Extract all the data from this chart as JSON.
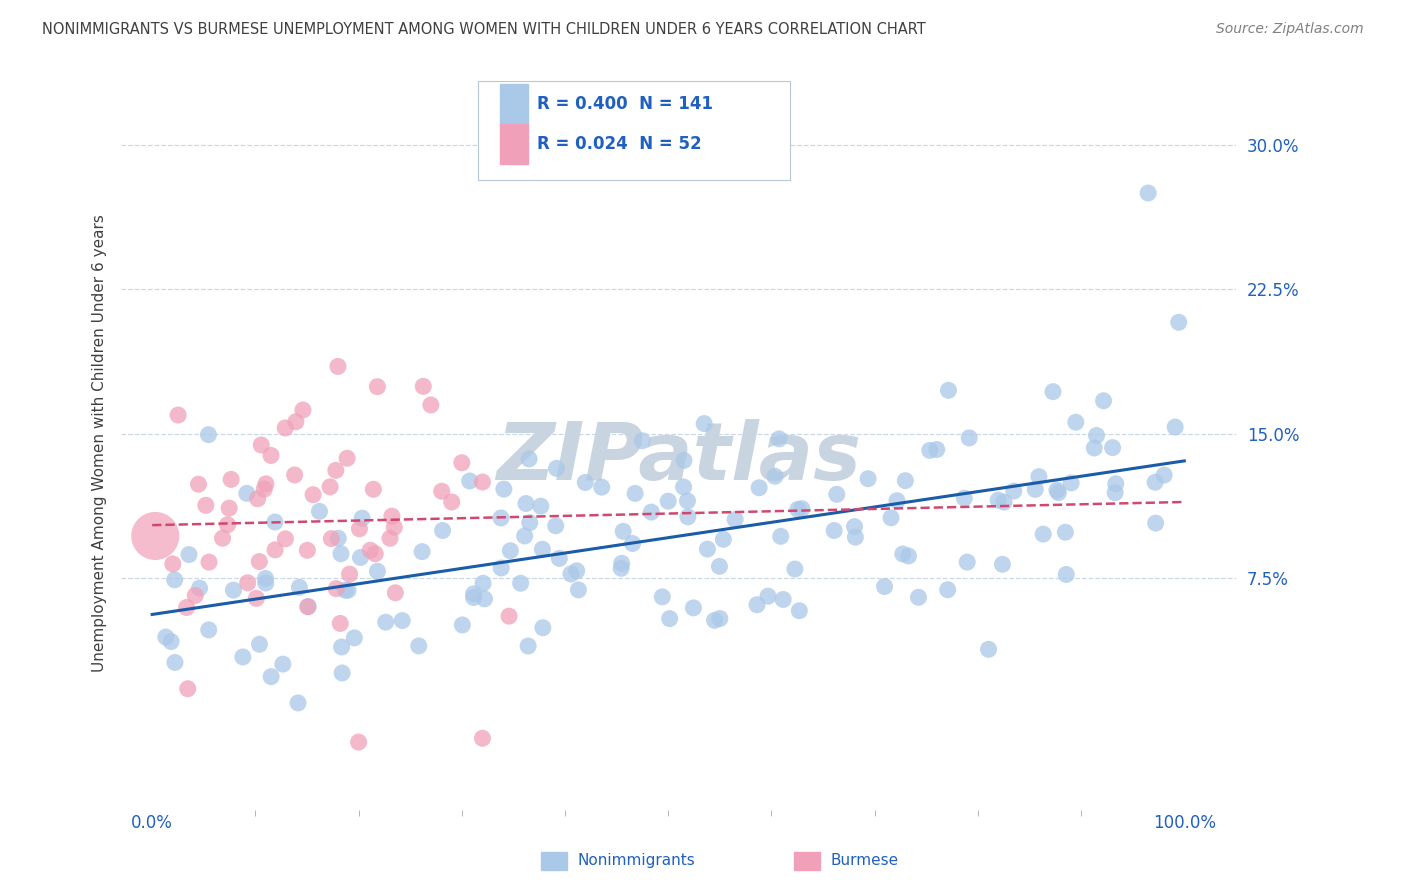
{
  "title": "NONIMMIGRANTS VS BURMESE UNEMPLOYMENT AMONG WOMEN WITH CHILDREN UNDER 6 YEARS CORRELATION CHART",
  "source": "Source: ZipAtlas.com",
  "ylabel": "Unemployment Among Women with Children Under 6 years",
  "ytick_labels": [
    "7.5%",
    "15.0%",
    "22.5%",
    "30.0%"
  ],
  "ytick_values": [
    0.075,
    0.15,
    0.225,
    0.3
  ],
  "xlim": [
    -0.03,
    1.05
  ],
  "ylim": [
    -0.045,
    0.335
  ],
  "nonimmigrant_R": 0.4,
  "nonimmigrant_N": 141,
  "burmese_R": 0.024,
  "burmese_N": 52,
  "nonimmigrant_color": "#aac8e8",
  "nonimmigrant_line_color": "#1a5ca8",
  "burmese_color": "#f0a0b8",
  "burmese_line_color": "#d04870",
  "background_color": "#ffffff",
  "grid_color": "#c8d8e8",
  "title_color": "#404040",
  "source_color": "#808080",
  "legend_text_color": "#2060c0",
  "watermark_color": "#c8d4e0",
  "watermark_text": "ZIPatlas"
}
